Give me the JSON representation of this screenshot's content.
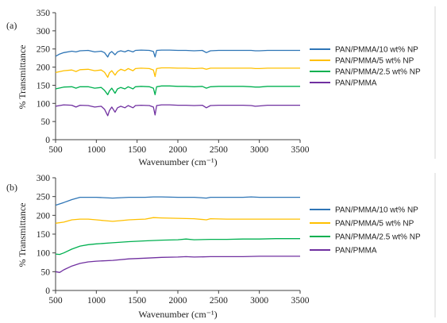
{
  "chart_data": [
    {
      "type": "line",
      "panel_label": "(a)",
      "xlabel": "Wavenumber (cm⁻¹)",
      "ylabel": "% Transmittance",
      "xlim": [
        500,
        3500
      ],
      "ylim": [
        0,
        350
      ],
      "x_ticks": [
        500,
        1000,
        1500,
        2000,
        2500,
        3000,
        3500
      ],
      "y_ticks": [
        0,
        50,
        100,
        150,
        200,
        250,
        300,
        350
      ],
      "grid": false,
      "legend": "right",
      "series": [
        {
          "name": "PAN/PMMA",
          "color": "#7030a0",
          "points": [
            [
              500,
              92
            ],
            [
              600,
              96
            ],
            [
              700,
              95
            ],
            [
              750,
              90
            ],
            [
              800,
              95
            ],
            [
              900,
              94
            ],
            [
              980,
              90
            ],
            [
              1060,
              92
            ],
            [
              1100,
              84
            ],
            [
              1140,
              66
            ],
            [
              1160,
              80
            ],
            [
              1190,
              90
            ],
            [
              1230,
              76
            ],
            [
              1260,
              88
            ],
            [
              1300,
              92
            ],
            [
              1350,
              88
            ],
            [
              1390,
              94
            ],
            [
              1450,
              88
            ],
            [
              1480,
              94
            ],
            [
              1550,
              95
            ],
            [
              1650,
              94
            ],
            [
              1700,
              90
            ],
            [
              1720,
              68
            ],
            [
              1740,
              94
            ],
            [
              1800,
              96
            ],
            [
              1900,
              96
            ],
            [
              2000,
              95
            ],
            [
              2100,
              95
            ],
            [
              2200,
              94
            ],
            [
              2300,
              95
            ],
            [
              2350,
              88
            ],
            [
              2400,
              94
            ],
            [
              2500,
              95
            ],
            [
              2800,
              95
            ],
            [
              2900,
              94
            ],
            [
              2950,
              92
            ],
            [
              3000,
              93
            ],
            [
              3100,
              95
            ],
            [
              3500,
              95
            ]
          ]
        },
        {
          "name": "PAN/PMMA/2.5 wt% NP",
          "color": "#00b050",
          "points": [
            [
              500,
              140
            ],
            [
              600,
              145
            ],
            [
              700,
              146
            ],
            [
              750,
              142
            ],
            [
              800,
              146
            ],
            [
              900,
              146
            ],
            [
              980,
              142
            ],
            [
              1060,
              144
            ],
            [
              1100,
              136
            ],
            [
              1140,
              124
            ],
            [
              1160,
              134
            ],
            [
              1190,
              142
            ],
            [
              1230,
              128
            ],
            [
              1260,
              140
            ],
            [
              1300,
              144
            ],
            [
              1350,
              140
            ],
            [
              1390,
              146
            ],
            [
              1450,
              140
            ],
            [
              1480,
              146
            ],
            [
              1550,
              147
            ],
            [
              1650,
              146
            ],
            [
              1700,
              142
            ],
            [
              1720,
              124
            ],
            [
              1740,
              146
            ],
            [
              1800,
              148
            ],
            [
              1900,
              148
            ],
            [
              2000,
              147
            ],
            [
              2100,
              147
            ],
            [
              2200,
              146
            ],
            [
              2300,
              147
            ],
            [
              2350,
              142
            ],
            [
              2400,
              146
            ],
            [
              2500,
              147
            ],
            [
              2800,
              147
            ],
            [
              2900,
              146
            ],
            [
              2950,
              145
            ],
            [
              3000,
              145
            ],
            [
              3100,
              147
            ],
            [
              3500,
              147
            ]
          ]
        },
        {
          "name": "PAN/PMMA/5 wt% NP",
          "color": "#ffc000",
          "points": [
            [
              500,
              185
            ],
            [
              600,
              190
            ],
            [
              700,
              192
            ],
            [
              750,
              188
            ],
            [
              800,
              193
            ],
            [
              900,
              194
            ],
            [
              980,
              190
            ],
            [
              1060,
              192
            ],
            [
              1100,
              186
            ],
            [
              1140,
              172
            ],
            [
              1160,
              184
            ],
            [
              1190,
              190
            ],
            [
              1230,
              178
            ],
            [
              1260,
              188
            ],
            [
              1300,
              194
            ],
            [
              1350,
              190
            ],
            [
              1390,
              196
            ],
            [
              1450,
              190
            ],
            [
              1480,
              196
            ],
            [
              1550,
              197
            ],
            [
              1650,
              196
            ],
            [
              1700,
              192
            ],
            [
              1720,
              174
            ],
            [
              1740,
              196
            ],
            [
              1800,
              198
            ],
            [
              1900,
              198
            ],
            [
              2000,
              197
            ],
            [
              2100,
              197
            ],
            [
              2200,
              196
            ],
            [
              2300,
              197
            ],
            [
              2350,
              194
            ],
            [
              2400,
              197
            ],
            [
              2500,
              197
            ],
            [
              2800,
              197
            ],
            [
              2900,
              197
            ],
            [
              2950,
              196
            ],
            [
              3000,
              196
            ],
            [
              3100,
              197
            ],
            [
              3500,
              197
            ]
          ]
        },
        {
          "name": "PAN/PMMA/10 wt% NP",
          "color": "#2e75b6",
          "points": [
            [
              500,
              230
            ],
            [
              550,
              236
            ],
            [
              600,
              240
            ],
            [
              700,
              244
            ],
            [
              750,
              242
            ],
            [
              800,
              245
            ],
            [
              900,
              246
            ],
            [
              980,
              242
            ],
            [
              1060,
              244
            ],
            [
              1100,
              240
            ],
            [
              1140,
              228
            ],
            [
              1160,
              238
            ],
            [
              1190,
              243
            ],
            [
              1230,
              234
            ],
            [
              1260,
              242
            ],
            [
              1300,
              245
            ],
            [
              1350,
              242
            ],
            [
              1390,
              246
            ],
            [
              1450,
              242
            ],
            [
              1480,
              246
            ],
            [
              1550,
              247
            ],
            [
              1650,
              246
            ],
            [
              1700,
              243
            ],
            [
              1720,
              228
            ],
            [
              1740,
              246
            ],
            [
              1800,
              247
            ],
            [
              1900,
              247
            ],
            [
              2000,
              246
            ],
            [
              2100,
              246
            ],
            [
              2200,
              245
            ],
            [
              2300,
              246
            ],
            [
              2350,
              240
            ],
            [
              2400,
              245
            ],
            [
              2500,
              246
            ],
            [
              2800,
              246
            ],
            [
              2900,
              246
            ],
            [
              2950,
              245
            ],
            [
              3000,
              245
            ],
            [
              3100,
              246
            ],
            [
              3500,
              246
            ]
          ]
        }
      ]
    },
    {
      "type": "line",
      "panel_label": "(b)",
      "xlabel": "Wavenumber (cm⁻¹)",
      "ylabel": "% Transmittance",
      "xlim": [
        500,
        3500
      ],
      "ylim": [
        0,
        300
      ],
      "x_ticks": [
        500,
        1000,
        1500,
        2000,
        2500,
        3000,
        3500
      ],
      "y_ticks": [
        0,
        50,
        100,
        150,
        200,
        250,
        300
      ],
      "grid": false,
      "legend": "right",
      "series": [
        {
          "name": "PAN/PMMA",
          "color": "#7030a0",
          "points": [
            [
              500,
              50
            ],
            [
              550,
              48
            ],
            [
              600,
              55
            ],
            [
              700,
              65
            ],
            [
              800,
              72
            ],
            [
              900,
              76
            ],
            [
              1000,
              78
            ],
            [
              1200,
              80
            ],
            [
              1400,
              84
            ],
            [
              1600,
              86
            ],
            [
              1800,
              88
            ],
            [
              2000,
              89
            ],
            [
              2100,
              90
            ],
            [
              2200,
              89
            ],
            [
              2400,
              90
            ],
            [
              2600,
              90
            ],
            [
              2800,
              90
            ],
            [
              3000,
              91
            ],
            [
              3200,
              91
            ],
            [
              3500,
              91
            ]
          ]
        },
        {
          "name": "PAN/PMMA/2.5 wt% NP",
          "color": "#00b050",
          "points": [
            [
              500,
              97
            ],
            [
              550,
              96
            ],
            [
              600,
              100
            ],
            [
              700,
              110
            ],
            [
              800,
              118
            ],
            [
              900,
              122
            ],
            [
              1000,
              124
            ],
            [
              1200,
              127
            ],
            [
              1400,
              130
            ],
            [
              1600,
              132
            ],
            [
              1800,
              134
            ],
            [
              2000,
              135
            ],
            [
              2100,
              137
            ],
            [
              2200,
              135
            ],
            [
              2400,
              136
            ],
            [
              2600,
              136
            ],
            [
              2800,
              137
            ],
            [
              3000,
              137
            ],
            [
              3200,
              138
            ],
            [
              3500,
              138
            ]
          ]
        },
        {
          "name": "PAN/PMMA/5 wt% NP",
          "color": "#ffc000",
          "points": [
            [
              500,
              179
            ],
            [
              600,
              182
            ],
            [
              700,
              188
            ],
            [
              800,
              190
            ],
            [
              900,
              190
            ],
            [
              1000,
              188
            ],
            [
              1100,
              186
            ],
            [
              1200,
              184
            ],
            [
              1300,
              186
            ],
            [
              1400,
              188
            ],
            [
              1500,
              189
            ],
            [
              1600,
              190
            ],
            [
              1700,
              194
            ],
            [
              1800,
              193
            ],
            [
              2000,
              192
            ],
            [
              2200,
              191
            ],
            [
              2350,
              188
            ],
            [
              2400,
              191
            ],
            [
              2600,
              190
            ],
            [
              2800,
              190
            ],
            [
              3000,
              190
            ],
            [
              3200,
              190
            ],
            [
              3500,
              190
            ]
          ]
        },
        {
          "name": "PAN/PMMA/10 wt% NP",
          "color": "#2e75b6",
          "points": [
            [
              500,
              227
            ],
            [
              600,
              234
            ],
            [
              700,
              242
            ],
            [
              800,
              248
            ],
            [
              900,
              248
            ],
            [
              1000,
              248
            ],
            [
              1100,
              247
            ],
            [
              1200,
              246
            ],
            [
              1300,
              247
            ],
            [
              1400,
              248
            ],
            [
              1600,
              248
            ],
            [
              1700,
              249
            ],
            [
              1800,
              249
            ],
            [
              2000,
              248
            ],
            [
              2200,
              248
            ],
            [
              2350,
              246
            ],
            [
              2400,
              248
            ],
            [
              2600,
              248
            ],
            [
              2800,
              248
            ],
            [
              2900,
              249
            ],
            [
              3000,
              248
            ],
            [
              3200,
              248
            ],
            [
              3500,
              248
            ]
          ]
        }
      ]
    }
  ]
}
